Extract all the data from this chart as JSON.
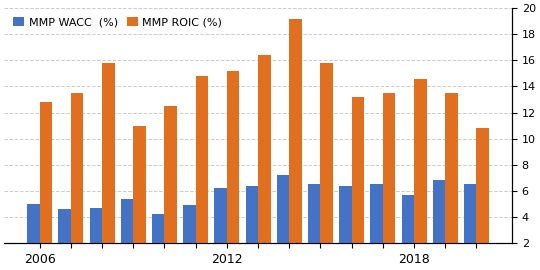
{
  "years": [
    2006,
    2007,
    2008,
    2009,
    2010,
    2011,
    2012,
    2013,
    2014,
    2015,
    2016,
    2017,
    2018,
    2019,
    2020
  ],
  "wacc": [
    5.0,
    4.6,
    4.7,
    5.4,
    4.2,
    4.9,
    6.2,
    6.4,
    7.2,
    6.5,
    6.4,
    6.5,
    5.7,
    6.8,
    6.5
  ],
  "roic": [
    12.8,
    13.5,
    15.8,
    11.0,
    12.5,
    14.8,
    15.2,
    16.4,
    19.2,
    15.8,
    13.2,
    13.5,
    14.6,
    13.5,
    10.8
  ],
  "wacc_color": "#4472c4",
  "roic_color": "#e07020",
  "legend_labels": [
    "MMP WACC  (%)",
    "MMP ROIC (%)"
  ],
  "ylim": [
    2,
    20
  ],
  "yticks": [
    2,
    4,
    6,
    8,
    10,
    12,
    14,
    16,
    18,
    20
  ],
  "grid_color": "#cccccc",
  "background_color": "#ffffff",
  "bar_width": 0.4,
  "xtick_years": [
    2006,
    2012,
    2018
  ]
}
